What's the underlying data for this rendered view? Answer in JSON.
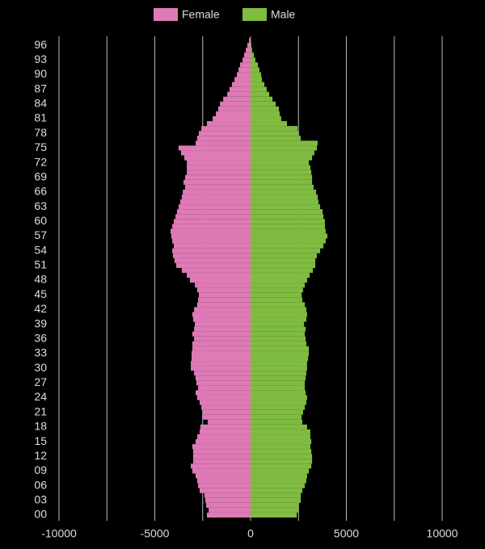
{
  "chart_data": {
    "type": "pyramid",
    "legend": "top",
    "grid": true,
    "categories": [
      "00",
      null,
      null,
      "03",
      null,
      null,
      "06",
      null,
      null,
      "09",
      null,
      null,
      "12",
      null,
      null,
      "15",
      null,
      null,
      "18",
      null,
      null,
      "21",
      null,
      null,
      "24",
      null,
      null,
      "27",
      null,
      null,
      "30",
      null,
      null,
      "33",
      null,
      null,
      "36",
      null,
      null,
      "39",
      null,
      null,
      "42",
      null,
      null,
      "45",
      null,
      null,
      "48",
      null,
      null,
      "51",
      null,
      null,
      "54",
      null,
      null,
      "57",
      null,
      null,
      "60",
      null,
      null,
      "63",
      null,
      null,
      "66",
      null,
      null,
      "69",
      null,
      null,
      "72",
      null,
      null,
      "75",
      null,
      null,
      "78",
      null,
      null,
      "81",
      null,
      null,
      "84",
      null,
      null,
      "87",
      null,
      null,
      "90",
      null,
      null,
      "93",
      null,
      null,
      "96",
      null
    ],
    "xlim": [
      -10000,
      10000
    ],
    "xticks": [
      -10000,
      -5000,
      0,
      5000,
      10000
    ],
    "xgrid": [
      -10000,
      -7500,
      -5000,
      -2500,
      0,
      2500,
      5000,
      7500,
      10000
    ],
    "series": [
      {
        "name": "Female",
        "color": "#de7ab6",
        "values": [
          -2280,
          -2190,
          -2320,
          -2360,
          -2410,
          -2660,
          -2740,
          -2790,
          -2870,
          -3040,
          -3120,
          -3000,
          -3000,
          -3000,
          -3040,
          -2870,
          -2790,
          -2660,
          -2620,
          -2240,
          -2530,
          -2490,
          -2570,
          -2660,
          -2790,
          -2870,
          -2740,
          -2830,
          -2870,
          -2950,
          -3120,
          -3120,
          -3080,
          -3080,
          -3040,
          -3040,
          -2950,
          -3040,
          -2950,
          -2910,
          -3000,
          -3040,
          -2950,
          -2790,
          -2740,
          -2700,
          -2790,
          -2910,
          -3170,
          -3330,
          -3590,
          -3880,
          -3970,
          -4050,
          -4090,
          -4010,
          -4090,
          -4140,
          -4180,
          -4090,
          -4010,
          -3920,
          -3840,
          -3760,
          -3670,
          -3590,
          -3540,
          -3420,
          -3500,
          -3420,
          -3330,
          -3330,
          -3330,
          -3460,
          -3630,
          -3760,
          -2870,
          -2790,
          -2700,
          -2570,
          -2280,
          -1980,
          -1810,
          -1690,
          -1600,
          -1430,
          -1220,
          -1100,
          -970,
          -840,
          -720,
          -630,
          -550,
          -420,
          -340,
          -250,
          -170,
          -80
        ]
      },
      {
        "name": "Male",
        "color": "#7fbc41",
        "values": [
          2410,
          2490,
          2530,
          2620,
          2620,
          2700,
          2830,
          2910,
          2950,
          3040,
          3170,
          3210,
          3210,
          3170,
          3120,
          3170,
          3120,
          3120,
          2950,
          2700,
          2660,
          2740,
          2830,
          2910,
          2950,
          2870,
          2830,
          2830,
          2870,
          2910,
          2950,
          2950,
          3000,
          3040,
          3040,
          2910,
          2870,
          2830,
          2870,
          2790,
          2910,
          2950,
          2910,
          2830,
          2700,
          2660,
          2740,
          2830,
          2950,
          3080,
          3250,
          3380,
          3380,
          3460,
          3630,
          3800,
          3920,
          4010,
          3920,
          3880,
          3880,
          3800,
          3760,
          3630,
          3540,
          3500,
          3420,
          3290,
          3210,
          3210,
          3170,
          3120,
          3040,
          3210,
          3330,
          3460,
          3500,
          2620,
          2490,
          2450,
          1900,
          1600,
          1520,
          1480,
          1310,
          1140,
          970,
          840,
          720,
          590,
          550,
          460,
          380,
          250,
          170,
          80,
          40,
          20
        ]
      }
    ]
  }
}
